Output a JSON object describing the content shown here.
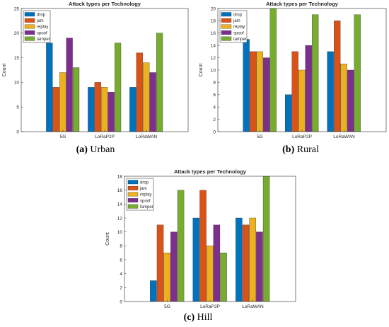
{
  "chart_data": [
    {
      "type": "bar",
      "title": "Attack types per Technology",
      "ylabel": "Count",
      "xlabel": "",
      "categories": [
        "5G",
        "LoRaP2P",
        "LoRaWAN"
      ],
      "ylim": [
        0,
        25
      ],
      "yticks": [
        0,
        5,
        10,
        15,
        20,
        25
      ],
      "legend": "top-left",
      "grid": false,
      "series": [
        {
          "name": "drop",
          "values": [
            18,
            9,
            9
          ]
        },
        {
          "name": "jam",
          "values": [
            9,
            10,
            16
          ]
        },
        {
          "name": "replay",
          "values": [
            12,
            9,
            14
          ]
        },
        {
          "name": "spoof",
          "values": [
            19,
            8,
            12
          ]
        },
        {
          "name": "tamper",
          "values": [
            13,
            18,
            20
          ]
        }
      ]
    },
    {
      "type": "bar",
      "title": "Attack types per Technology",
      "ylabel": "Count",
      "xlabel": "",
      "categories": [
        "5G",
        "LoRaP2P",
        "LoRaWAN"
      ],
      "ylim": [
        0,
        20
      ],
      "yticks": [
        0,
        2,
        4,
        6,
        8,
        10,
        12,
        14,
        16,
        18,
        20
      ],
      "legend": "top-left",
      "grid": false,
      "series": [
        {
          "name": "drop",
          "values": [
            15,
            6,
            13
          ]
        },
        {
          "name": "jam",
          "values": [
            13,
            13,
            18
          ]
        },
        {
          "name": "replay",
          "values": [
            13,
            10,
            11
          ]
        },
        {
          "name": "spoof",
          "values": [
            12,
            14,
            10
          ]
        },
        {
          "name": "tamper",
          "values": [
            20,
            19,
            19
          ]
        }
      ]
    },
    {
      "type": "bar",
      "title": "Attack types per Technology",
      "ylabel": "Count",
      "xlabel": "",
      "categories": [
        "5G",
        "LoRaP2P",
        "LoRaWAN"
      ],
      "ylim": [
        0,
        18
      ],
      "yticks": [
        0,
        2,
        4,
        6,
        8,
        10,
        12,
        14,
        16,
        18
      ],
      "legend": "top-left",
      "grid": false,
      "series": [
        {
          "name": "drop",
          "values": [
            3,
            12,
            12
          ]
        },
        {
          "name": "jam",
          "values": [
            11,
            16,
            11
          ]
        },
        {
          "name": "replay",
          "values": [
            7,
            8,
            12
          ]
        },
        {
          "name": "spoof",
          "values": [
            10,
            11,
            10
          ]
        },
        {
          "name": "tamper",
          "values": [
            16,
            7,
            18
          ]
        }
      ]
    }
  ],
  "series_colors": [
    "#0072bd",
    "#d95319",
    "#edb120",
    "#7e2f8e",
    "#77ac30"
  ],
  "captions": [
    {
      "label": "(a)",
      "text": "Urban"
    },
    {
      "label": "(b)",
      "text": "Rural"
    },
    {
      "label": "(c)",
      "text": "Hill"
    }
  ]
}
